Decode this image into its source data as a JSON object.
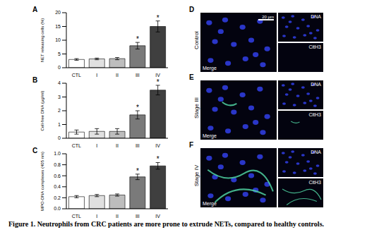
{
  "chart_data": [
    {
      "type": "bar",
      "panel": "A",
      "y_label": "NET releasing cells (%)",
      "categories": [
        "CTL",
        "I",
        "II",
        "III",
        "IV"
      ],
      "values": [
        3,
        3.2,
        3.3,
        8,
        15
      ],
      "errors": [
        0.3,
        0.3,
        0.4,
        1.2,
        2.0
      ],
      "colors": [
        "#ffffff",
        "#e0e0e0",
        "#bdbdbd",
        "#7a7a7a",
        "#3f3f3f"
      ],
      "ylim": [
        0,
        20
      ],
      "yticks": [
        0,
        5,
        10,
        15,
        20
      ],
      "annotations": [
        {
          "category": "III",
          "text": "*"
        },
        {
          "category": "IV",
          "text": "*"
        }
      ]
    },
    {
      "type": "bar",
      "panel": "B",
      "y_label": "Cell-free DNA (µg/ml)",
      "categories": [
        "CTL",
        "I",
        "II",
        "III",
        "IV"
      ],
      "values": [
        0.45,
        0.5,
        0.5,
        1.7,
        3.5
      ],
      "errors": [
        0.15,
        0.2,
        0.2,
        0.3,
        0.35
      ],
      "colors": [
        "#ffffff",
        "#e0e0e0",
        "#bdbdbd",
        "#7a7a7a",
        "#3f3f3f"
      ],
      "ylim": [
        0,
        4
      ],
      "yticks": [
        0,
        1,
        2,
        3,
        4
      ],
      "annotations": [
        {
          "category": "III",
          "text": "*"
        },
        {
          "category": "IV",
          "text": "*"
        }
      ]
    },
    {
      "type": "bar",
      "panel": "C",
      "y_label": "MPO-DNA complexes (405 nm)",
      "categories": [
        "CTL",
        "I",
        "II",
        "III",
        "IV"
      ],
      "values": [
        0.22,
        0.24,
        0.25,
        0.58,
        0.78
      ],
      "errors": [
        0.02,
        0.02,
        0.02,
        0.05,
        0.06
      ],
      "colors": [
        "#ffffff",
        "#e0e0e0",
        "#bdbdbd",
        "#7a7a7a",
        "#3f3f3f"
      ],
      "ylim": [
        0,
        1
      ],
      "yticks": [
        {
          "value": 0,
          "label": "0.0"
        },
        0.2,
        0.4,
        0.6,
        0.8,
        {
          "value": 1,
          "label": "1.0"
        }
      ],
      "annotations": [
        {
          "category": "III",
          "text": "*"
        },
        {
          "category": "IV",
          "text": "*"
        }
      ]
    }
  ],
  "image_panels": [
    {
      "panel": "D",
      "condition": "Control",
      "channels": [
        "Merge",
        "DNA",
        "CitH3"
      ],
      "scale_bar": "20 µm"
    },
    {
      "panel": "E",
      "condition": "Stage III",
      "channels": [
        "Merge",
        "DNA",
        "CitH3"
      ]
    },
    {
      "panel": "F",
      "condition": "Stage IV",
      "channels": [
        "Merge",
        "DNA",
        "CitH3"
      ]
    }
  ],
  "caption": "Figure 1. Neutrophils from CRC patients are more prone to extrude NETs, compared to healthy controls."
}
